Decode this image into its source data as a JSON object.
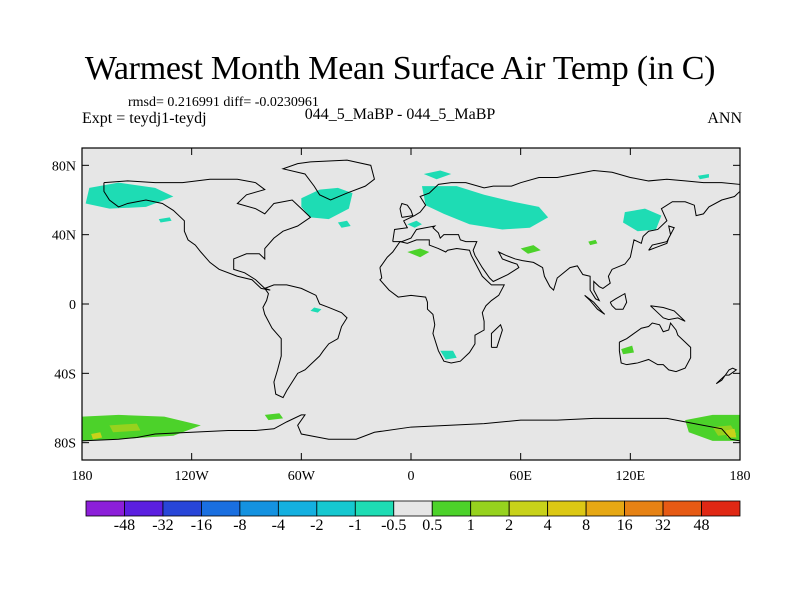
{
  "title": "Warmest Month Mean Surface Air Temp (in C)",
  "stats": "rmsd= 0.216991 diff= -0.0230961",
  "expt": "Expt = teydj1-teydj",
  "center_label": "044_5_MaBP - 044_5_MaBP",
  "season": "ANN",
  "map_data": {
    "projection": "cylindrical-equidistant",
    "lon_range": [
      -180,
      180
    ],
    "lat_range": [
      -90,
      90
    ],
    "lat_ticks": [
      {
        "value": 80,
        "label": "80N"
      },
      {
        "value": 40,
        "label": "40N"
      },
      {
        "value": 0,
        "label": "0"
      },
      {
        "value": -40,
        "label": "40S"
      },
      {
        "value": -80,
        "label": "80S"
      }
    ],
    "lon_ticks": [
      {
        "value": -180,
        "label": "180"
      },
      {
        "value": -120,
        "label": "120W"
      },
      {
        "value": -60,
        "label": "60W"
      },
      {
        "value": 0,
        "label": "0"
      },
      {
        "value": 60,
        "label": "60E"
      },
      {
        "value": 120,
        "label": "120E"
      },
      {
        "value": 180,
        "label": "180"
      }
    ],
    "background_class": "-0.5 to 0.5",
    "background_color": "#e6e6e6"
  },
  "colorbar": {
    "colors": [
      "#8c1fd9",
      "#5b1fe0",
      "#2846d8",
      "#1a6fe0",
      "#1492e0",
      "#14b0e0",
      "#16c8d0",
      "#1edcb4",
      "#e6e6e6",
      "#4cd22a",
      "#96d21e",
      "#c8d21a",
      "#dcc814",
      "#e6a814",
      "#e68214",
      "#e65a14",
      "#e02814"
    ],
    "labels": [
      "-48",
      "-32",
      "-16",
      "-8",
      "-4",
      "-2",
      "-1",
      "-0.5",
      "0.5",
      "1",
      "2",
      "4",
      "8",
      "16",
      "32",
      "48"
    ]
  },
  "colors": {
    "neg_small": "#1edcb4",
    "pos_small": "#4cd22a",
    "pos_mid": "#96d21e",
    "pos_high": "#c8d21a",
    "land_outline": "#000000",
    "background": "#e6e6e6"
  }
}
